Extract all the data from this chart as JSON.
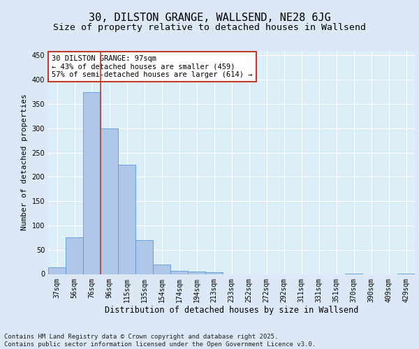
{
  "title1": "30, DILSTON GRANGE, WALLSEND, NE28 6JG",
  "title2": "Size of property relative to detached houses in Wallsend",
  "xlabel": "Distribution of detached houses by size in Wallsend",
  "ylabel": "Number of detached properties",
  "categories": [
    "37sqm",
    "56sqm",
    "76sqm",
    "96sqm",
    "115sqm",
    "135sqm",
    "154sqm",
    "174sqm",
    "194sqm",
    "213sqm",
    "233sqm",
    "252sqm",
    "272sqm",
    "292sqm",
    "311sqm",
    "331sqm",
    "351sqm",
    "370sqm",
    "390sqm",
    "409sqm",
    "429sqm"
  ],
  "values": [
    13,
    75,
    375,
    300,
    225,
    70,
    20,
    7,
    5,
    3,
    0,
    0,
    0,
    0,
    0,
    0,
    0,
    1,
    0,
    0,
    1
  ],
  "bar_color": "#aec6e8",
  "bar_edge_color": "#5b9bd5",
  "vline_x": 2.5,
  "vline_color": "#c0392b",
  "annotation_text": "30 DILSTON GRANGE: 97sqm\n← 43% of detached houses are smaller (459)\n57% of semi-detached houses are larger (614) →",
  "annotation_box_color": "#ffffff",
  "annotation_box_edge": "#c0392b",
  "ylim": [
    0,
    460
  ],
  "yticks": [
    0,
    50,
    100,
    150,
    200,
    250,
    300,
    350,
    400,
    450
  ],
  "bg_color": "#dce8f5",
  "plot_bg_color": "#dceef8",
  "footer": "Contains HM Land Registry data © Crown copyright and database right 2025.\nContains public sector information licensed under the Open Government Licence v3.0.",
  "title1_fontsize": 11,
  "title2_fontsize": 9.5,
  "tick_fontsize": 7,
  "ylabel_fontsize": 8,
  "xlabel_fontsize": 8.5,
  "grid_color": "#ffffff",
  "annotation_fontsize": 7.5,
  "footer_fontsize": 6.5
}
